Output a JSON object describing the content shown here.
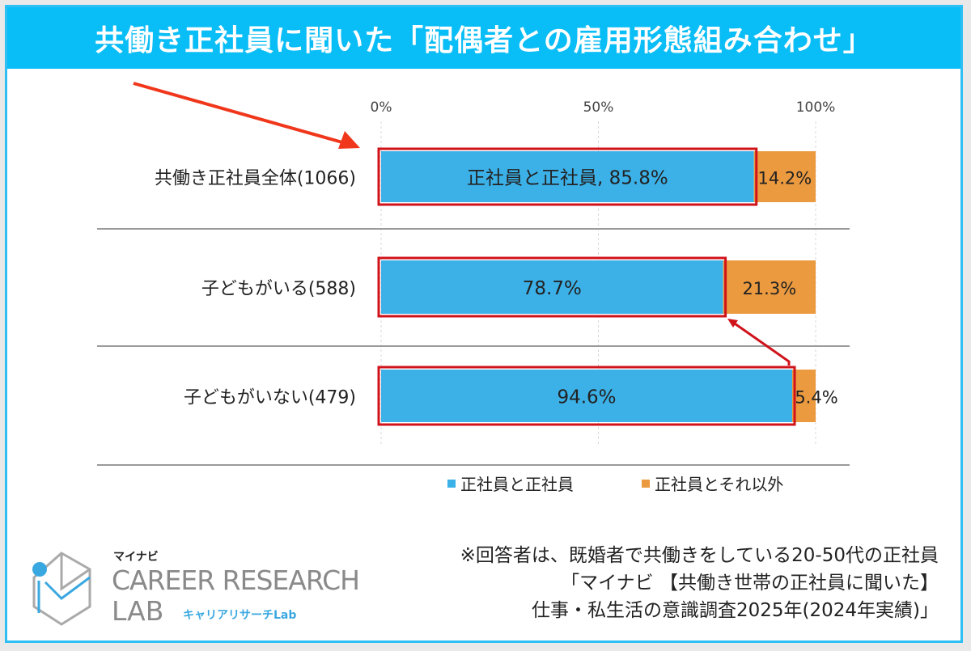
{
  "title": "共働き正社員に聞いた「配偶者との雇用形態組み合わせ」",
  "chart_data": {
    "type": "bar",
    "stacked": true,
    "orientation": "horizontal",
    "categories": [
      "共働き正社員全体(1066)",
      "子どもがいる(588)",
      "子どもがいない(479)"
    ],
    "series": [
      {
        "name": "正社員と正社員",
        "values": [
          85.8,
          78.7,
          94.6
        ],
        "color": "#3cb1e8"
      },
      {
        "name": "正社員とそれ以外",
        "values": [
          14.2,
          21.3,
          5.4
        ],
        "color": "#eb9a3f"
      }
    ],
    "data_labels": [
      [
        "正社員と正社員, 85.8%",
        "14.2%"
      ],
      [
        "78.7%",
        "21.3%"
      ],
      [
        "94.6%",
        "5.4%"
      ]
    ],
    "xlim": [
      0,
      100
    ],
    "x_ticks": [
      "0%",
      "50%",
      "100%"
    ],
    "grid": true,
    "legend": "bottom",
    "highlight_color": "#d0131b",
    "arrow_color": "#f0371c"
  },
  "footer": {
    "logo": {
      "brand": "マイナビ",
      "line1": "CAREER RESEARCH",
      "line2": "LAB",
      "kana": "キャリアリサーチLab"
    },
    "notes": [
      "※回答者は、既婚者で共働きをしている20-50代の正社員",
      "「マイナビ 【共働き世帯の正社員に聞いた】",
      "仕事・私生活の意識調査2025年(2024年実績)」"
    ]
  }
}
